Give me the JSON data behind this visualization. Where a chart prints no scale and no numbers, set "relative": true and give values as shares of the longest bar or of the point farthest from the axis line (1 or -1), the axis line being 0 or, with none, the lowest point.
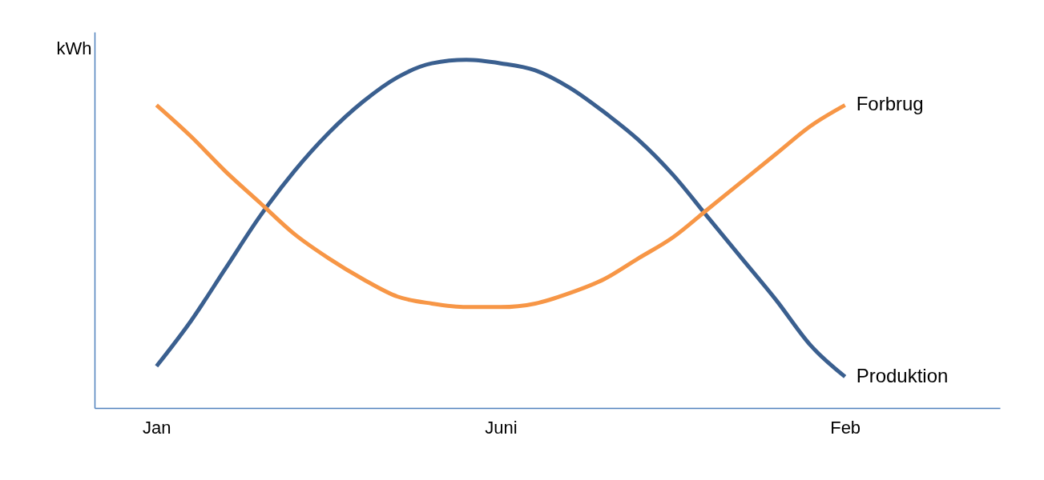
{
  "chart_data": {
    "type": "line",
    "relative": true,
    "ylabel": "kWh",
    "categories": [
      "Jan",
      null,
      null,
      null,
      null,
      null,
      null,
      null,
      null,
      null,
      "Juni",
      null,
      null,
      null,
      null,
      null,
      null,
      null,
      null,
      null,
      "Feb"
    ],
    "series": [
      {
        "name": "Produktion",
        "color": "#3a5f8f",
        "values": [
          0.12,
          0.25,
          0.4,
          0.55,
          0.68,
          0.79,
          0.88,
          0.95,
          0.99,
          1.0,
          0.99,
          0.97,
          0.92,
          0.85,
          0.77,
          0.67,
          0.55,
          0.43,
          0.31,
          0.18,
          0.09
        ]
      },
      {
        "name": "Forbrug",
        "color": "#f79646",
        "values": [
          0.87,
          0.78,
          0.68,
          0.59,
          0.5,
          0.43,
          0.37,
          0.32,
          0.3,
          0.29,
          0.29,
          0.3,
          0.33,
          0.37,
          0.43,
          0.49,
          0.57,
          0.65,
          0.73,
          0.81,
          0.87
        ]
      }
    ],
    "line_style": "solid",
    "marker": "none"
  }
}
